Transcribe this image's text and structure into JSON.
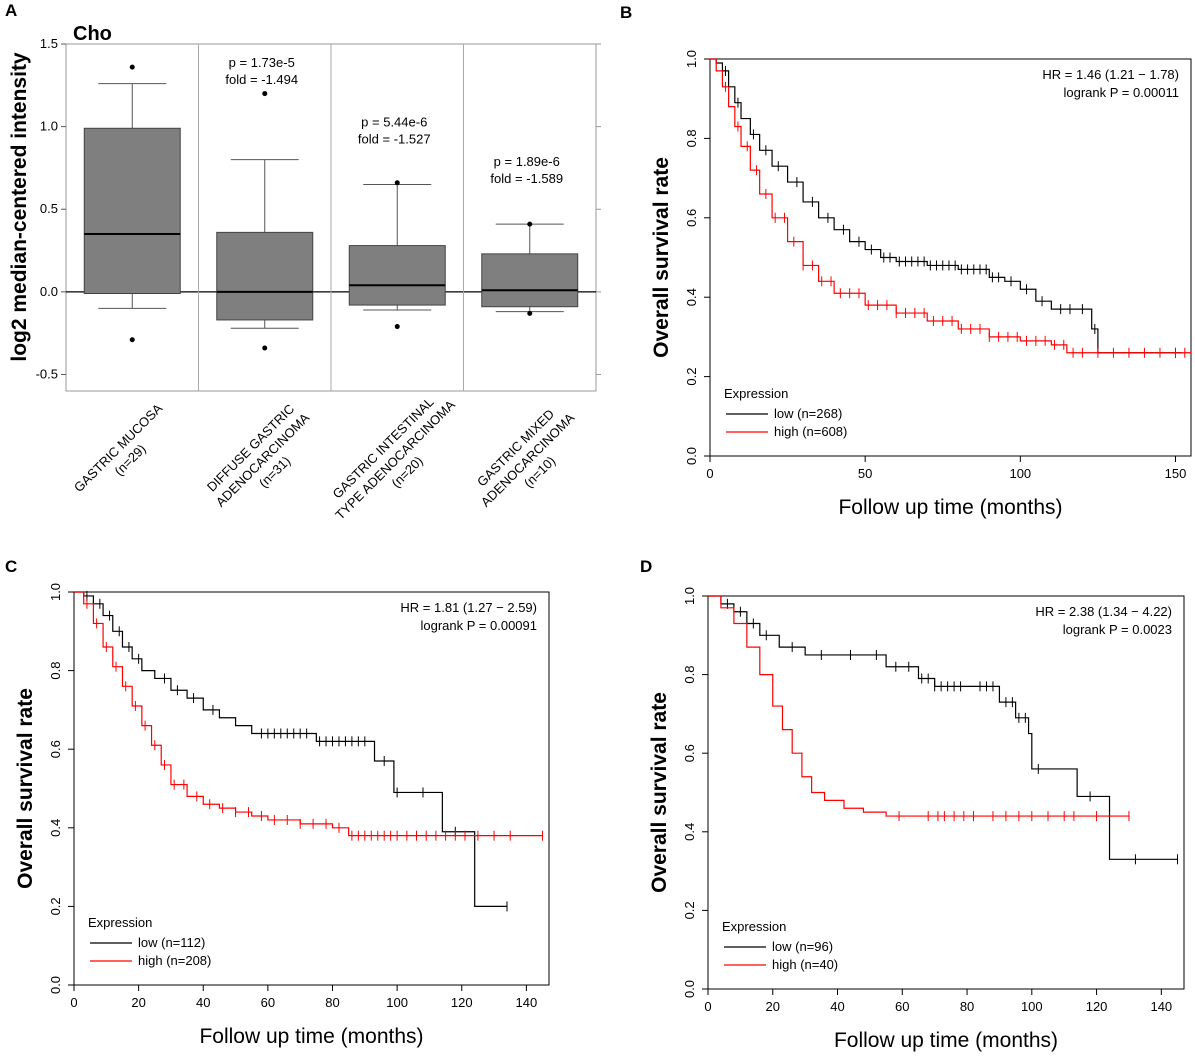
{
  "chart_data": [
    {
      "panel": "A",
      "type": "box",
      "title": "Cho",
      "ylabel": "log2 median-centered intensity",
      "ylim": [
        -0.6,
        1.5
      ],
      "yticks": [
        "-0.5",
        "0.0",
        "0.5",
        "1.0",
        "1.5"
      ],
      "yticks_num": [
        -0.5,
        0.0,
        0.5,
        1.0,
        1.5
      ],
      "groups": [
        {
          "label1": "GASTRIC MUCOSA",
          "label2": "(n=29)",
          "label3": "",
          "min": -0.1,
          "q1": -0.01,
          "median": 0.35,
          "q3": 0.99,
          "max": 1.26,
          "outliers": [
            1.36,
            -0.29
          ],
          "p": "",
          "fold": ""
        },
        {
          "label1": "DIFFUSE GASTRIC",
          "label2": "ADENOCARCINOMA",
          "label3": "(n=31)",
          "min": -0.22,
          "q1": -0.17,
          "median": 0.0,
          "q3": 0.36,
          "max": 0.8,
          "outliers": [
            1.2,
            -0.34
          ],
          "p": "p = 1.73e-5",
          "fold": "fold = -1.494"
        },
        {
          "label1": "GASTRIC INTESTINAL",
          "label2": "TYPE ADENOCARCINOMA",
          "label3": "(n=20)",
          "min": -0.11,
          "q1": -0.08,
          "median": 0.04,
          "q3": 0.28,
          "max": 0.65,
          "outliers": [
            0.66,
            -0.21
          ],
          "p": "p = 5.44e-6",
          "fold": "fold = -1.527"
        },
        {
          "label1": "GASTRIC MIXED",
          "label2": "ADENOCARCINOMA",
          "label3": "(n=10)",
          "min": -0.12,
          "q1": -0.09,
          "median": 0.01,
          "q3": 0.23,
          "max": 0.41,
          "outliers": [
            0.41,
            -0.13
          ],
          "p": "p = 1.89e-6",
          "fold": "fold = -1.589"
        }
      ]
    },
    {
      "panel": "B",
      "type": "km",
      "xlabel": "Follow up time (months)",
      "ylabel": "Overall survival rate",
      "xlim": [
        0,
        155
      ],
      "xticks": [
        0,
        50,
        100,
        150
      ],
      "yticks": [
        "0.0",
        "0.2",
        "0.4",
        "0.6",
        "0.8",
        "1.0"
      ],
      "yticks_num": [
        0,
        0.2,
        0.4,
        0.6,
        0.8,
        1.0
      ],
      "hr": "HR = 1.46 (1.21 − 1.78)",
      "logrank": "logrank P = 0.00011",
      "legend_title": "Expression",
      "series": [
        {
          "name": "low (n=268)",
          "color": "#000000",
          "points": [
            [
              0,
              1.0
            ],
            [
              2,
              0.99
            ],
            [
              4,
              0.97
            ],
            [
              6,
              0.93
            ],
            [
              8,
              0.89
            ],
            [
              10,
              0.85
            ],
            [
              13,
              0.81
            ],
            [
              16,
              0.77
            ],
            [
              20,
              0.73
            ],
            [
              25,
              0.69
            ],
            [
              30,
              0.64
            ],
            [
              35,
              0.6
            ],
            [
              40,
              0.57
            ],
            [
              45,
              0.54
            ],
            [
              50,
              0.52
            ],
            [
              55,
              0.5
            ],
            [
              60,
              0.49
            ],
            [
              70,
              0.48
            ],
            [
              80,
              0.47
            ],
            [
              90,
              0.45
            ],
            [
              95,
              0.44
            ],
            [
              100,
              0.42
            ],
            [
              105,
              0.39
            ],
            [
              110,
              0.37
            ],
            [
              118,
              0.37
            ],
            [
              123,
              0.32
            ],
            [
              125,
              0.26
            ],
            [
              152,
              0.26
            ]
          ],
          "censor": [
            5,
            9,
            14,
            18,
            22,
            28,
            33,
            38,
            43,
            48,
            52,
            56,
            58,
            61,
            63,
            65,
            67,
            69,
            71,
            73,
            75,
            77,
            79,
            81,
            83,
            85,
            87,
            89,
            91,
            93,
            97,
            102,
            107,
            113,
            116,
            120,
            124,
            150
          ]
        },
        {
          "name": "high (n=608)",
          "color": "#ff0000",
          "points": [
            [
              0,
              1.0
            ],
            [
              2,
              0.97
            ],
            [
              4,
              0.93
            ],
            [
              6,
              0.88
            ],
            [
              8,
              0.83
            ],
            [
              10,
              0.78
            ],
            [
              13,
              0.72
            ],
            [
              16,
              0.66
            ],
            [
              20,
              0.6
            ],
            [
              25,
              0.54
            ],
            [
              30,
              0.48
            ],
            [
              35,
              0.44
            ],
            [
              40,
              0.41
            ],
            [
              50,
              0.38
            ],
            [
              60,
              0.36
            ],
            [
              70,
              0.34
            ],
            [
              80,
              0.32
            ],
            [
              90,
              0.3
            ],
            [
              100,
              0.29
            ],
            [
              110,
              0.28
            ],
            [
              115,
              0.26
            ],
            [
              155,
              0.26
            ]
          ],
          "censor": [
            5,
            9,
            12,
            15,
            18,
            21,
            24,
            27,
            30,
            33,
            36,
            39,
            42,
            45,
            48,
            51,
            54,
            57,
            60,
            63,
            66,
            69,
            72,
            75,
            78,
            81,
            84,
            87,
            90,
            93,
            96,
            99,
            102,
            105,
            108,
            111,
            114,
            117,
            120,
            125,
            130,
            135,
            140,
            145,
            150,
            153
          ]
        }
      ]
    },
    {
      "panel": "C",
      "type": "km",
      "xlabel": "Follow up time (months)",
      "ylabel": "Overall survival rate",
      "xlim": [
        0,
        147
      ],
      "xticks": [
        0,
        20,
        40,
        60,
        80,
        100,
        120,
        140
      ],
      "yticks": [
        "0.0",
        "0.2",
        "0.4",
        "0.6",
        "0.8",
        "1.0"
      ],
      "yticks_num": [
        0,
        0.2,
        0.4,
        0.6,
        0.8,
        1.0
      ],
      "hr": "HR = 1.81 (1.27 − 2.59)",
      "logrank": "logrank P = 0.00091",
      "legend_title": "Expression",
      "series": [
        {
          "name": "low (n=112)",
          "color": "#000000",
          "points": [
            [
              0,
              1.0
            ],
            [
              3,
              0.99
            ],
            [
              6,
              0.97
            ],
            [
              9,
              0.94
            ],
            [
              12,
              0.9
            ],
            [
              15,
              0.86
            ],
            [
              18,
              0.83
            ],
            [
              21,
              0.8
            ],
            [
              25,
              0.78
            ],
            [
              30,
              0.75
            ],
            [
              35,
              0.73
            ],
            [
              40,
              0.7
            ],
            [
              45,
              0.68
            ],
            [
              50,
              0.66
            ],
            [
              55,
              0.64
            ],
            [
              75,
              0.62
            ],
            [
              90,
              0.62
            ],
            [
              93,
              0.57
            ],
            [
              97,
              0.57
            ],
            [
              99,
              0.49
            ],
            [
              113,
              0.49
            ],
            [
              114,
              0.39
            ],
            [
              123,
              0.39
            ],
            [
              124,
              0.2
            ],
            [
              134,
              0.2
            ]
          ],
          "censor": [
            4,
            8,
            11,
            14,
            17,
            20,
            28,
            32,
            37,
            43,
            58,
            60,
            62,
            64,
            66,
            68,
            70,
            72,
            76,
            78,
            80,
            82,
            84,
            86,
            88,
            90,
            96,
            100,
            108,
            118,
            134
          ]
        },
        {
          "name": "high (n=208)",
          "color": "#ff0000",
          "points": [
            [
              0,
              1.0
            ],
            [
              3,
              0.97
            ],
            [
              6,
              0.92
            ],
            [
              9,
              0.86
            ],
            [
              12,
              0.81
            ],
            [
              15,
              0.76
            ],
            [
              18,
              0.71
            ],
            [
              21,
              0.66
            ],
            [
              24,
              0.61
            ],
            [
              27,
              0.56
            ],
            [
              30,
              0.51
            ],
            [
              35,
              0.48
            ],
            [
              40,
              0.46
            ],
            [
              45,
              0.45
            ],
            [
              50,
              0.44
            ],
            [
              55,
              0.43
            ],
            [
              60,
              0.42
            ],
            [
              70,
              0.41
            ],
            [
              80,
              0.4
            ],
            [
              85,
              0.38
            ],
            [
              145,
              0.38
            ]
          ],
          "censor": [
            4,
            7,
            10,
            13,
            16,
            19,
            22,
            25,
            28,
            31,
            34,
            38,
            42,
            46,
            50,
            54,
            58,
            62,
            66,
            70,
            74,
            78,
            82,
            86,
            88,
            90,
            92,
            94,
            96,
            98,
            100,
            103,
            106,
            109,
            112,
            115,
            118,
            121,
            125,
            130,
            135,
            145
          ]
        }
      ]
    },
    {
      "panel": "D",
      "type": "km",
      "xlabel": "Follow up time (months)",
      "ylabel": "Overall survival rate",
      "xlim": [
        0,
        147
      ],
      "xticks": [
        0,
        20,
        40,
        60,
        80,
        100,
        120,
        140
      ],
      "yticks": [
        "0.0",
        "0.2",
        "0.4",
        "0.6",
        "0.8",
        "1.0"
      ],
      "yticks_num": [
        0,
        0.2,
        0.4,
        0.6,
        0.8,
        1.0
      ],
      "hr": "HR = 2.38 (1.34 − 4.22)",
      "logrank": "logrank P = 0.0023",
      "legend_title": "Expression",
      "series": [
        {
          "name": "low (n=96)",
          "color": "#000000",
          "points": [
            [
              0,
              1.0
            ],
            [
              4,
              0.98
            ],
            [
              8,
              0.96
            ],
            [
              12,
              0.93
            ],
            [
              16,
              0.9
            ],
            [
              22,
              0.87
            ],
            [
              30,
              0.85
            ],
            [
              48,
              0.85
            ],
            [
              55,
              0.82
            ],
            [
              65,
              0.79
            ],
            [
              70,
              0.77
            ],
            [
              82,
              0.77
            ],
            [
              90,
              0.73
            ],
            [
              95,
              0.69
            ],
            [
              99,
              0.65
            ],
            [
              100,
              0.56
            ],
            [
              113,
              0.56
            ],
            [
              114,
              0.49
            ],
            [
              123,
              0.49
            ],
            [
              124,
              0.33
            ],
            [
              145,
              0.33
            ]
          ],
          "censor": [
            6,
            10,
            14,
            18,
            26,
            35,
            44,
            52,
            58,
            62,
            66,
            68,
            70,
            72,
            74,
            76,
            78,
            84,
            86,
            88,
            92,
            94,
            96,
            98,
            102,
            118,
            132,
            145
          ]
        },
        {
          "name": "high (n=40)",
          "color": "#ff0000",
          "points": [
            [
              0,
              1.0
            ],
            [
              4,
              0.97
            ],
            [
              8,
              0.93
            ],
            [
              12,
              0.87
            ],
            [
              16,
              0.8
            ],
            [
              20,
              0.72
            ],
            [
              23,
              0.66
            ],
            [
              26,
              0.6
            ],
            [
              29,
              0.54
            ],
            [
              32,
              0.5
            ],
            [
              36,
              0.48
            ],
            [
              42,
              0.46
            ],
            [
              48,
              0.45
            ],
            [
              55,
              0.44
            ],
            [
              130,
              0.44
            ]
          ],
          "censor": [
            59,
            68,
            71,
            73,
            76,
            79,
            82,
            88,
            92,
            96,
            100,
            105,
            110,
            113,
            120,
            130
          ]
        }
      ]
    }
  ]
}
